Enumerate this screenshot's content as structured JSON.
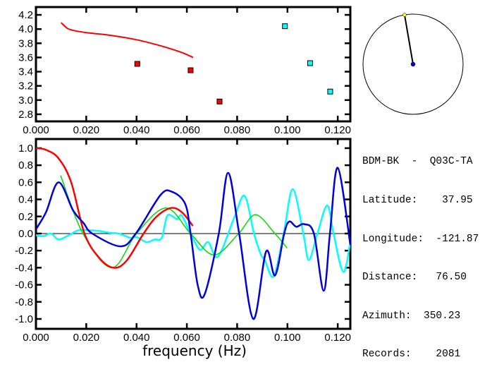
{
  "chart_data": [
    {
      "type": "scatter",
      "xlim": [
        0,
        0.125
      ],
      "ylim": [
        2.7,
        4.31
      ],
      "x_ticks": [
        "0.000",
        "0.020",
        "0.040",
        "0.060",
        "0.080",
        "0.100",
        "0.120"
      ],
      "x_tick_values": [
        0,
        0.02,
        0.04,
        0.06,
        0.08,
        0.1,
        0.12
      ],
      "y_ticks": [
        "2.8",
        "3.0",
        "3.2",
        "3.4",
        "3.6",
        "3.8",
        "4.0",
        "4.2"
      ],
      "y_tick_values": [
        2.8,
        3.0,
        3.2,
        3.4,
        3.6,
        3.8,
        4.0,
        4.2
      ],
      "line": {
        "color": "#ff0000",
        "x": [
          0.01,
          0.0125,
          0.015,
          0.02,
          0.03,
          0.04,
          0.05,
          0.058,
          0.0625
        ],
        "y": [
          4.09,
          4.01,
          3.98,
          3.95,
          3.91,
          3.85,
          3.76,
          3.67,
          3.6
        ]
      },
      "points": [
        {
          "color": "#ff0000",
          "x": [
            0.0403,
            0.0615,
            0.073
          ],
          "y": [
            3.51,
            3.42,
            2.98
          ]
        },
        {
          "color": "#00ffff",
          "x": [
            0.099,
            0.109,
            0.117
          ],
          "y": [
            4.04,
            3.52,
            3.12
          ]
        }
      ]
    },
    {
      "type": "line",
      "xlabel": "frequency (Hz)",
      "xlim": [
        0,
        0.125
      ],
      "ylim": [
        -1.116,
        1.107
      ],
      "x_ticks": [
        "0.000",
        "0.020",
        "0.040",
        "0.060",
        "0.080",
        "0.100",
        "0.120"
      ],
      "x_tick_values": [
        0,
        0.02,
        0.04,
        0.06,
        0.08,
        0.1,
        0.12
      ],
      "y_ticks": [
        "-1.0",
        "-0.8",
        "-0.6",
        "-0.4",
        "-0.2",
        "0.0",
        "0.2",
        "0.4",
        "0.6",
        "0.8",
        "1.0"
      ],
      "y_tick_values": [
        -1.0,
        -0.8,
        -0.6,
        -0.4,
        -0.2,
        0.0,
        0.2,
        0.4,
        0.6,
        0.8,
        1.0
      ],
      "series": [
        {
          "color": "#00ffff",
          "x": [
            0,
            0.003,
            0.006,
            0.009,
            0.013,
            0.017,
            0.021,
            0.025,
            0.029,
            0.033,
            0.0375,
            0.04,
            0.044,
            0.047,
            0.05,
            0.0523,
            0.056,
            0.058,
            0.0615,
            0.0652,
            0.0685,
            0.0724,
            0.079,
            0.083,
            0.0867,
            0.0895,
            0.091,
            0.0945,
            0.0985,
            0.1021,
            0.1063,
            0.1085,
            0.1119,
            0.1158,
            0.1183,
            0.1222,
            0.125
          ],
          "y": [
            -0.02,
            -0.03,
            0.0,
            -0.07,
            -0.02,
            0.04,
            0.04,
            0.03,
            0.01,
            0.0,
            -0.05,
            -0.04,
            -0.1,
            -0.07,
            -0.05,
            0.21,
            0.17,
            0.21,
            0.0,
            -0.19,
            -0.1,
            -0.27,
            0.2,
            0.44,
            0.0,
            -0.25,
            -0.31,
            -0.5,
            0.0,
            0.52,
            0.0,
            -0.31,
            0.0,
            0.33,
            0.0,
            -0.45,
            -0.1
          ]
        },
        {
          "color": "#00dd00",
          "x": [
            0.0098,
            0.0187,
            0.0302,
            0.04,
            0.0517,
            0.0615,
            0.0708,
            0.0806,
            0.0873,
            0.095,
            0.0999
          ],
          "y": [
            0.68,
            0.0,
            -0.4,
            0.0,
            0.3,
            0.0,
            -0.25,
            0.0,
            0.22,
            0.0,
            -0.17
          ]
        },
        {
          "color": "#ff0000",
          "x": [
            0,
            0.004,
            0.009,
            0.014,
            0.0193,
            0.025,
            0.0308,
            0.036,
            0.0428,
            0.048,
            0.0537,
            0.058,
            0.0624
          ],
          "y": [
            1.0,
            0.98,
            0.88,
            0.6,
            0.0,
            -0.28,
            -0.4,
            -0.32,
            0.0,
            0.2,
            0.3,
            0.25,
            0.09
          ]
        },
        {
          "color": "#0000dd",
          "x": [
            0,
            0.004,
            0.009,
            0.0148,
            0.019,
            0.0224,
            0.0336,
            0.0397,
            0.0495,
            0.054,
            0.0593,
            0.0615,
            0.0643,
            0.0671,
            0.0727,
            0.0764,
            0.0808,
            0.0864,
            0.0915,
            0.0951,
            0.0987,
            0.1007,
            0.1035,
            0.1066,
            0.1105,
            0.1144,
            0.1169,
            0.12,
            0.125
          ],
          "y": [
            0.05,
            0.25,
            0.6,
            0.27,
            0.12,
            0.0,
            -0.15,
            0.0,
            0.45,
            0.49,
            0.35,
            0.0,
            -0.6,
            -0.71,
            0.0,
            0.71,
            0.0,
            -1.0,
            -0.21,
            -0.49,
            0.0,
            0.14,
            0.08,
            0.11,
            0.0,
            -0.67,
            0.0,
            0.77,
            -0.13
          ]
        }
      ]
    }
  ],
  "compass": {
    "azimuth_deg": 350.23,
    "needle_color": "#000000",
    "tip_color": "#ffff00",
    "center_color": "#0000dd"
  },
  "info": {
    "title": "BDM-BK  -  Q03C-TA",
    "lines": [
      "Latitude:    37.95",
      "Longitude:  -121.87",
      "Distance:   76.50",
      "Azimuth:  350.23",
      "Records:    2081"
    ]
  }
}
